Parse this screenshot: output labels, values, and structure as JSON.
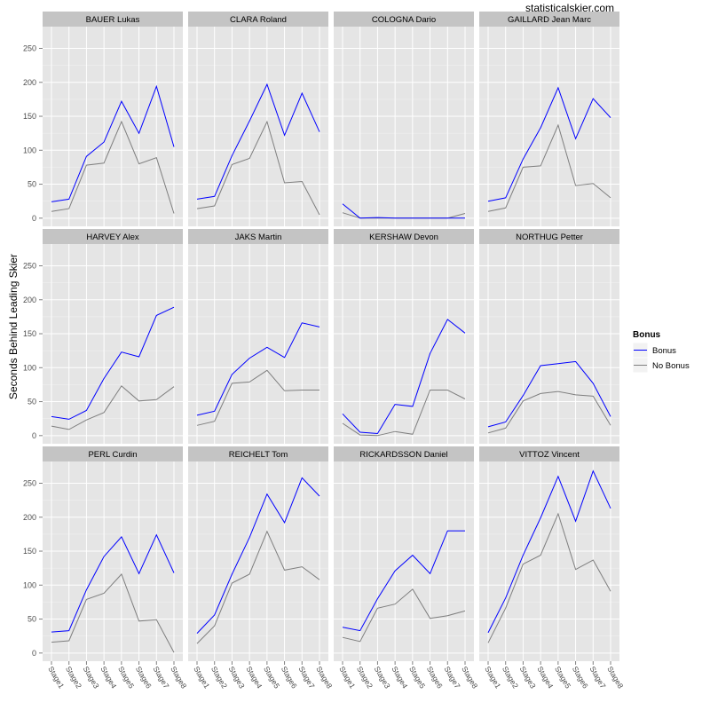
{
  "watermark": "statisticalskier.com",
  "chart_data": {
    "type": "line",
    "ylabel": "Seconds Behind Leading Skier",
    "xlabel": "",
    "categories": [
      "Stage1",
      "Stage2",
      "Stage3",
      "Stage4",
      "Stage5",
      "Stage6",
      "Stage7",
      "Stage8"
    ],
    "yticks": [
      0,
      50,
      100,
      150,
      200,
      250
    ],
    "ylim": [
      -12,
      282
    ],
    "legend": {
      "title": "Bonus",
      "placement": "right",
      "entries": [
        {
          "label": "Bonus",
          "color": "#0000ff"
        },
        {
          "label": "No Bonus",
          "color": "#7f7f7f"
        }
      ]
    },
    "colors": {
      "bonus": "#0000ff",
      "no_bonus": "#7f7f7f",
      "panel_bg": "#e5e5e5",
      "strip_bg": "#c4c4c4"
    },
    "panels": [
      {
        "name": "BAUER Lukas",
        "bonus": [
          24,
          28,
          91,
          112,
          172,
          125,
          194,
          105
        ],
        "no_bonus": [
          10,
          14,
          78,
          81,
          142,
          80,
          89,
          7
        ]
      },
      {
        "name": "CLARA Roland",
        "bonus": [
          28,
          32,
          92,
          143,
          197,
          122,
          184,
          127
        ],
        "no_bonus": [
          14,
          18,
          79,
          88,
          142,
          52,
          54,
          5
        ]
      },
      {
        "name": "COLOGNA Dario",
        "bonus": [
          21,
          0,
          1,
          0,
          0,
          0,
          0,
          0
        ],
        "no_bonus": [
          8,
          0,
          0,
          0,
          0,
          0,
          0,
          7
        ]
      },
      {
        "name": "GAILLARD Jean Marc",
        "bonus": [
          25,
          30,
          87,
          133,
          192,
          117,
          176,
          148
        ],
        "no_bonus": [
          10,
          15,
          75,
          77,
          137,
          48,
          51,
          30
        ]
      },
      {
        "name": "HARVEY Alex",
        "bonus": [
          28,
          24,
          37,
          84,
          123,
          116,
          177,
          189
        ],
        "no_bonus": [
          14,
          9,
          23,
          34,
          73,
          51,
          53,
          72
        ]
      },
      {
        "name": "JAKS Martin",
        "bonus": [
          30,
          36,
          90,
          114,
          130,
          115,
          166,
          160
        ],
        "no_bonus": [
          15,
          21,
          77,
          79,
          96,
          66,
          67,
          67
        ]
      },
      {
        "name": "KERSHAW Devon",
        "bonus": [
          32,
          5,
          3,
          46,
          43,
          121,
          171,
          151
        ],
        "no_bonus": [
          18,
          1,
          0,
          6,
          2,
          67,
          67,
          54
        ]
      },
      {
        "name": "NORTHUG Petter",
        "bonus": [
          13,
          20,
          59,
          103,
          106,
          109,
          77,
          28
        ],
        "no_bonus": [
          4,
          11,
          51,
          62,
          65,
          60,
          58,
          15
        ]
      },
      {
        "name": "PERL Curdin",
        "bonus": [
          31,
          33,
          93,
          142,
          171,
          117,
          174,
          118
        ],
        "no_bonus": [
          16,
          18,
          79,
          88,
          116,
          47,
          49,
          1
        ]
      },
      {
        "name": "REICHELT Tom",
        "bonus": [
          29,
          56,
          116,
          170,
          234,
          192,
          258,
          231
        ],
        "no_bonus": [
          14,
          40,
          103,
          116,
          179,
          122,
          127,
          108
        ]
      },
      {
        "name": "RICKARDSSON Daniel",
        "bonus": [
          38,
          33,
          80,
          121,
          144,
          117,
          180,
          180
        ],
        "no_bonus": [
          23,
          17,
          66,
          72,
          94,
          51,
          55,
          62
        ]
      },
      {
        "name": "VITTOZ Vincent",
        "bonus": [
          30,
          81,
          144,
          199,
          260,
          194,
          268,
          213
        ],
        "no_bonus": [
          15,
          66,
          131,
          144,
          205,
          123,
          137,
          91
        ]
      }
    ]
  }
}
